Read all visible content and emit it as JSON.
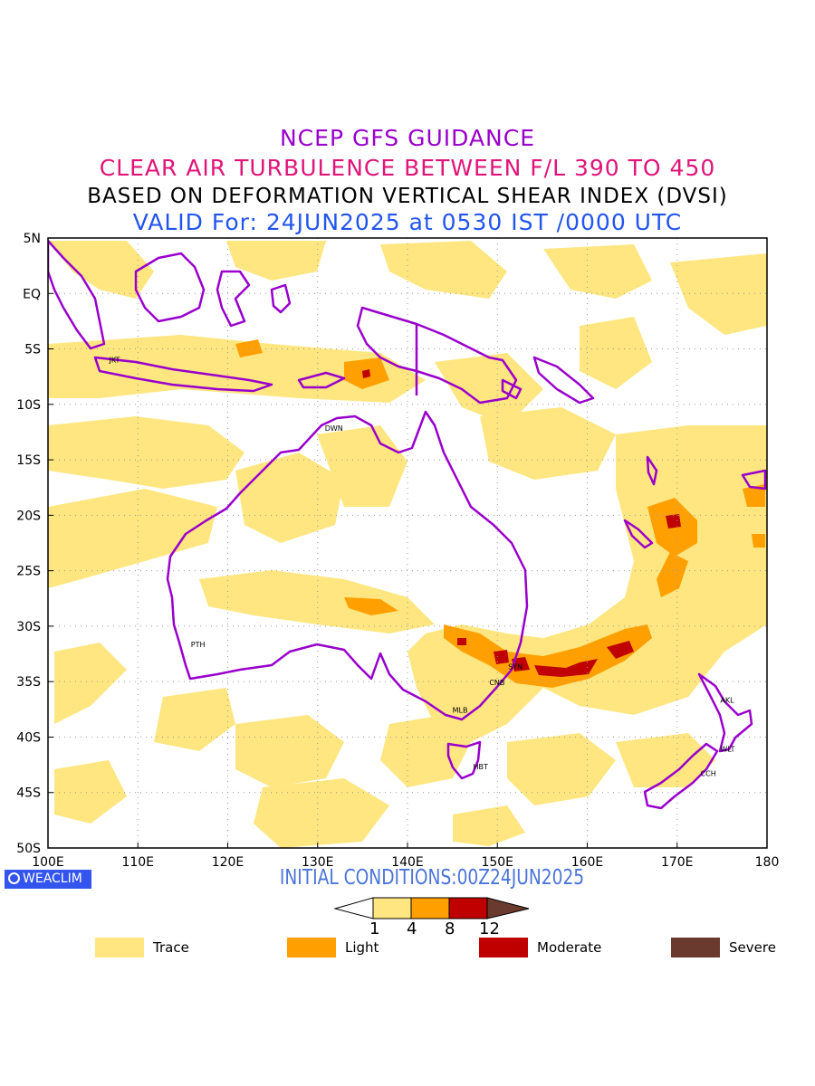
{
  "titles": {
    "line1": "NCEP GFS GUIDANCE",
    "line2": "CLEAR AIR TURBULENCE BETWEEN F/L 390 TO 450",
    "line3": "BASED ON DEFORMATION VERTICAL SHEAR INDEX (DVSI)",
    "line4": "VALID For: 24JUN2025 at 0530 IST /0000 UTC"
  },
  "colors": {
    "title1": "#9900cc",
    "title2": "#e0157a",
    "title3": "#000000",
    "title4": "#2255ee",
    "coast": "#9900cc",
    "trace": "#ffe680",
    "light": "#ffa000",
    "moderate": "#c00000",
    "severe": "#6b3a2e",
    "brand_bg": "#3355ee",
    "init_text": "#4a74d8"
  },
  "map": {
    "lon_ticks": [
      "100E",
      "110E",
      "120E",
      "130E",
      "140E",
      "150E",
      "160E",
      "170E",
      "180"
    ],
    "lat_ticks": [
      "5N",
      "EQ",
      "5S",
      "10S",
      "15S",
      "20S",
      "25S",
      "30S",
      "35S",
      "40S",
      "45S",
      "50S"
    ],
    "lon_range": [
      100,
      180
    ],
    "lat_range": [
      5,
      -50
    ],
    "stations": [
      {
        "code": "JKT",
        "lon": 106.8,
        "lat": -6.2
      },
      {
        "code": "DWN",
        "lon": 130.8,
        "lat": -12.4
      },
      {
        "code": "PTH",
        "lon": 115.9,
        "lat": -31.9
      },
      {
        "code": "SYN",
        "lon": 151.2,
        "lat": -33.9
      },
      {
        "code": "CNB",
        "lon": 149.1,
        "lat": -35.3
      },
      {
        "code": "MLB",
        "lon": 145.0,
        "lat": -37.8
      },
      {
        "code": "HBT",
        "lon": 147.3,
        "lat": -42.9
      },
      {
        "code": "AKL",
        "lon": 174.8,
        "lat": -36.9
      },
      {
        "code": "WLT",
        "lon": 174.8,
        "lat": -41.3
      },
      {
        "code": "CCH",
        "lon": 172.6,
        "lat": -43.5
      }
    ]
  },
  "brand": "WEACLIM",
  "brand_icon": "copyright-icon",
  "initial_conditions": "INITIAL CONDITIONS:00Z24JUN2025",
  "colorbar": {
    "labels": [
      "1",
      "4",
      "8",
      "12"
    ]
  },
  "legend": [
    {
      "label": "Trace",
      "color": "#ffe680"
    },
    {
      "label": "Light",
      "color": "#ffa000"
    },
    {
      "label": "Moderate",
      "color": "#c00000"
    },
    {
      "label": "Severe",
      "color": "#6b3a2e"
    }
  ]
}
